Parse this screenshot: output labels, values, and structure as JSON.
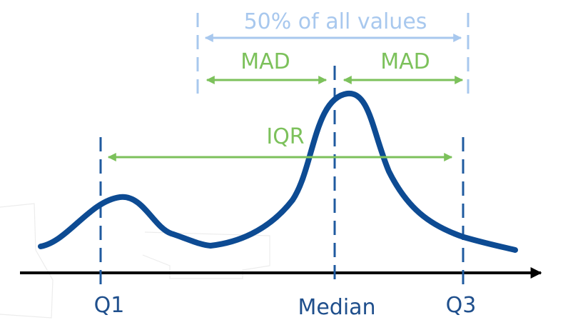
{
  "labels": {
    "fifty_percent": "50% of all values",
    "mad_left": "MAD",
    "mad_right": "MAD",
    "iqr": "IQR",
    "q1": "Q1",
    "median": "Median",
    "q3": "Q3"
  },
  "colors": {
    "curve": "#0d4b93",
    "marker": "#1f5a9f",
    "light_blue": "#a8c8ee",
    "green": "#7cc15b",
    "axis": "#000000"
  }
}
